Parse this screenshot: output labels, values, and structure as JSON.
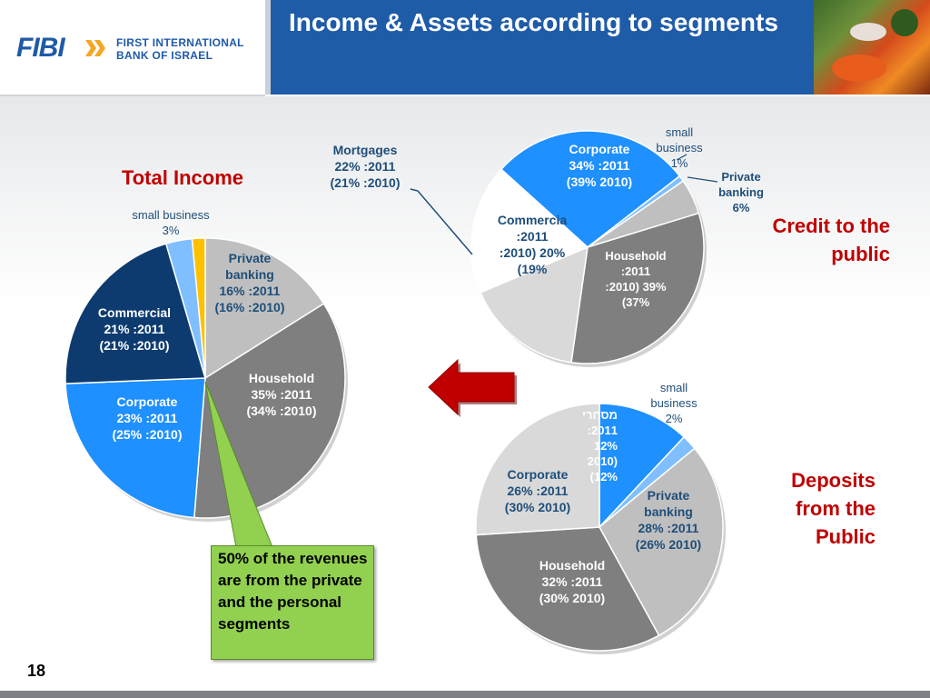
{
  "header": {
    "title": "Income & Assets according to segments",
    "logo_short": "FIBI",
    "logo_name_line1": "FIRST INTERNATIONAL",
    "logo_name_line2": "BANK OF ISRAEL"
  },
  "page_number": "18",
  "callout_text": "50% of the revenues are from the private and the personal segments",
  "colors": {
    "brand_blue": "#1f5ca8",
    "title_red": "#c00000",
    "callout_green": "#92d050",
    "arrow_red": "#c00000"
  },
  "chart_data": [
    {
      "id": "total_income",
      "type": "pie",
      "title": "Total Income",
      "slices": [
        {
          "name": "Private banking",
          "value": 16,
          "lines": [
            "Private",
            "banking",
            "16% :2011",
            "(16% :2010)"
          ],
          "color": "#bfbfbf"
        },
        {
          "name": "Household",
          "value": 35,
          "lines": [
            "Household",
            "35% :2011",
            "(34% :2010)"
          ],
          "color": "#7f7f7f"
        },
        {
          "name": "Corporate",
          "value": 23,
          "lines": [
            "Corporate",
            "23% :2011",
            "(25% :2010)"
          ],
          "color": "#1e90ff"
        },
        {
          "name": "Commercial",
          "value": 21,
          "lines": [
            "Commercial",
            "21% :2011",
            "(21% :2010)"
          ],
          "color": "#0d3b70"
        },
        {
          "name": "small business",
          "value": 3,
          "lines": [
            "small business",
            "3%"
          ],
          "color": "#80bfff"
        },
        {
          "name": "",
          "value": 1.5,
          "lines": [],
          "color": "#ffc000"
        }
      ]
    },
    {
      "id": "credit_to_public",
      "type": "pie",
      "title": "Credit to the public",
      "slices": [
        {
          "name": "Corporate",
          "value": 34,
          "lines": [
            "Corporate",
            "34% :2011",
            "(39% 2010)"
          ],
          "color": "#1e90ff"
        },
        {
          "name": "small business",
          "value": 1,
          "lines": [
            "small",
            "business",
            "1%"
          ],
          "color": "#80bfff"
        },
        {
          "name": "Private banking",
          "value": 6,
          "lines": [
            "Private",
            "banking",
            "6%"
          ],
          "color": "#bfbfbf"
        },
        {
          "name": "Household",
          "value": 39,
          "lines": [
            "Household",
            ":2011",
            ":2010) 39%",
            "(37%"
          ],
          "color": "#7f7f7f"
        },
        {
          "name": "Commercia",
          "value": 20,
          "lines": [
            "Commercia",
            ":2011",
            ":2010) 20%",
            "(19%"
          ],
          "color": "#d9d9d9"
        },
        {
          "name": "Mortgages",
          "value": 22,
          "lines": [
            "Mortgages",
            "22% :2011",
            "(21% :2010)"
          ],
          "color": "#ffffff"
        }
      ]
    },
    {
      "id": "deposits_from_public",
      "type": "pie",
      "title": "Deposits from the Public",
      "slices": [
        {
          "name": "מסחרי",
          "value": 12,
          "lines": [
            "מסחרי",
            ":2011",
            "12%",
            "2010)",
            "(12%"
          ],
          "color": "#1e90ff"
        },
        {
          "name": "small business",
          "value": 2,
          "lines": [
            "small",
            "business",
            "2%"
          ],
          "color": "#80bfff"
        },
        {
          "name": "Private banking",
          "value": 28,
          "lines": [
            "Private",
            "banking",
            "28% :2011",
            "(26% 2010)"
          ],
          "color": "#bfbfbf"
        },
        {
          "name": "Household",
          "value": 32,
          "lines": [
            "Household",
            "32% :2011",
            "(30% 2010)"
          ],
          "color": "#7f7f7f"
        },
        {
          "name": "Corporate",
          "value": 26,
          "lines": [
            "Corporate",
            "26% :2011",
            "(30% 2010)"
          ],
          "color": "#d9d9d9"
        }
      ]
    }
  ]
}
